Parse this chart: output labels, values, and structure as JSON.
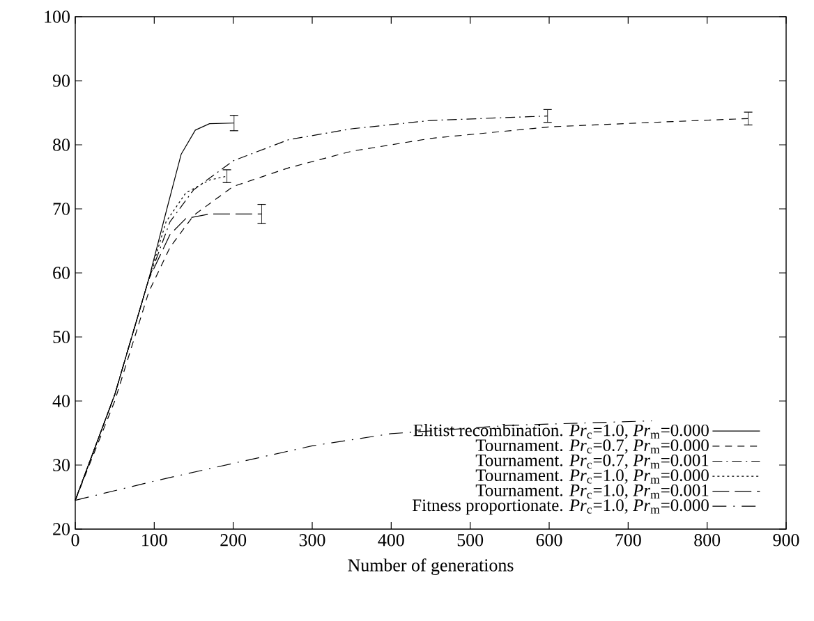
{
  "chart_data": {
    "type": "line",
    "xlabel": "Number of generations",
    "xlim": [
      0,
      900
    ],
    "ylim": [
      20,
      100
    ],
    "xticks": [
      0,
      100,
      200,
      300,
      400,
      500,
      600,
      700,
      800,
      900
    ],
    "yticks": [
      20,
      30,
      40,
      50,
      60,
      70,
      80,
      90,
      100
    ],
    "legend": "bottom right",
    "grid": false,
    "series": [
      {
        "name": "Elitist recombination. *Pr*$_{c}$=1.0, *Pr*$_{m}$=0.000",
        "color": "#000000",
        "line_style": "solid",
        "x": [
          0,
          50,
          93,
          116,
          134,
          152,
          170,
          201
        ],
        "values": [
          24.5,
          41,
          59,
          70,
          78.5,
          82.3,
          83.3,
          83.4
        ],
        "errors": [
          null,
          null,
          null,
          null,
          null,
          null,
          null,
          1.2
        ]
      },
      {
        "name": "Tournament. *Pr*$_{c}$=0.7, *Pr*$_{m}$=0.000",
        "color": "#000000",
        "line_style": "dashed",
        "x": [
          0,
          50,
          93,
          120,
          150,
          200,
          270,
          350,
          450,
          600,
          750,
          852
        ],
        "values": [
          24.5,
          40,
          57,
          64,
          69,
          73.5,
          76.4,
          79,
          81,
          82.8,
          83.6,
          84.1
        ],
        "errors": [
          null,
          null,
          null,
          null,
          null,
          null,
          null,
          null,
          null,
          null,
          null,
          1
        ]
      },
      {
        "name": "Tournament. *Pr*$_{c}$=0.7, *Pr*$_{m}$=0.001",
        "color": "#000000",
        "line_style": "dashdot",
        "x": [
          0,
          50,
          93,
          120,
          150,
          200,
          270,
          350,
          450,
          598
        ],
        "values": [
          24.5,
          41,
          59,
          68,
          73,
          77.5,
          80.8,
          82.5,
          83.8,
          84.5
        ],
        "errors": [
          null,
          null,
          null,
          null,
          null,
          null,
          null,
          null,
          null,
          1
        ]
      },
      {
        "name": "Tournament. *Pr*$_{c}$=1.0, *Pr*$_{m}$=0.000",
        "color": "#000000",
        "line_style": "dotted",
        "x": [
          0,
          50,
          93,
          115,
          140,
          170,
          192
        ],
        "values": [
          24.5,
          41,
          59,
          68,
          72.5,
          74.5,
          75.1
        ],
        "errors": [
          null,
          null,
          null,
          null,
          null,
          null,
          1
        ]
      },
      {
        "name": "Tournament. *Pr*$_{c}$=1.0, *Pr*$_{m}$=0.001",
        "color": "#000000",
        "line_style": "longdashed",
        "x": [
          0,
          50,
          93,
          120,
          140,
          170,
          236
        ],
        "values": [
          24.5,
          41,
          59,
          66,
          68.5,
          69.2,
          69.2
        ],
        "errors": [
          null,
          null,
          null,
          null,
          null,
          null,
          1.5
        ]
      },
      {
        "name": "Fitness proportionate. *Pr*$_{c}$=1.0, *Pr*$_{m}$=0.000",
        "color": "#000000",
        "line_style": "dashdotdot",
        "x": [
          0,
          100,
          194,
          300,
          400,
          550,
          730
        ],
        "values": [
          24.5,
          27.5,
          30.1,
          33,
          34.9,
          36.2,
          36.9
        ]
      }
    ]
  }
}
